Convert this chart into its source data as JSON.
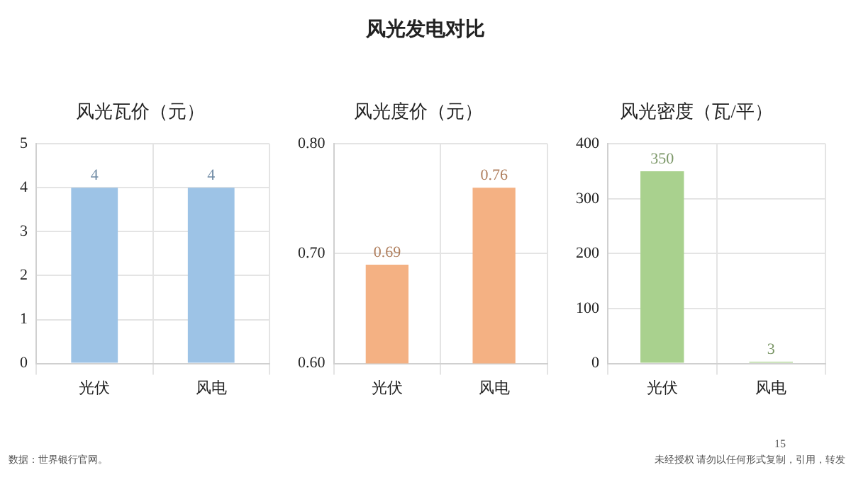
{
  "chart_data": [
    {
      "type": "bar",
      "title": "风光瓦价（元）",
      "categories": [
        "光伏",
        "风电"
      ],
      "values": [
        4,
        4
      ],
      "color": "#9dc3e6",
      "ylim": [
        0,
        5
      ],
      "yticks": [
        0,
        1,
        2,
        3,
        4,
        5
      ],
      "grid": true,
      "data_labels": true,
      "annotations": [
        "风光发电对比",
        "数据：世界银行官网。"
      ]
    },
    {
      "type": "bar",
      "title": "风光度价（元）",
      "categories": [
        "光伏",
        "风电"
      ],
      "values": [
        0.69,
        0.76
      ],
      "color": "#f4b183",
      "ylim": [
        0.6,
        0.8
      ],
      "yticks": [
        {
          "value": 0.6,
          "label": "0.60"
        },
        {
          "value": 0.7,
          "label": "0.70"
        },
        {
          "value": 0.8,
          "label": "0.80"
        }
      ],
      "grid": true,
      "data_labels": true
    },
    {
      "type": "bar",
      "title": "风光密度（瓦/平）",
      "categories": [
        "光伏",
        "风电"
      ],
      "values": [
        350,
        3
      ],
      "color": "#a9d18e",
      "ylim": [
        0,
        400
      ],
      "yticks": [
        0,
        100,
        200,
        300,
        400
      ],
      "grid": true,
      "data_labels": true,
      "annotations": [
        "15",
        "未经授权 请勿以任何形式复制，引用，转发"
      ]
    }
  ]
}
